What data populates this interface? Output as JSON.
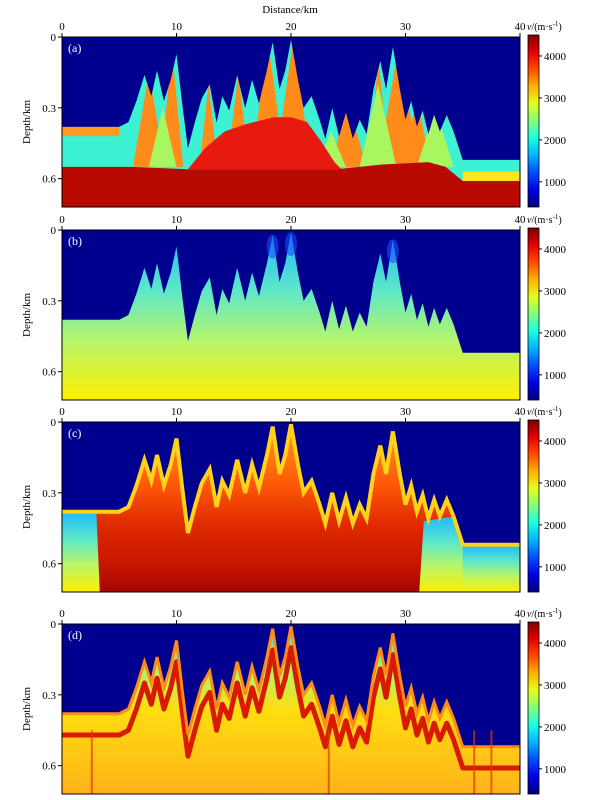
{
  "figure": {
    "top_axis_label": "Distance/km",
    "colorbar_label_prefix": "v/(m·s",
    "colorbar_label_exp": "-1",
    "colorbar_label_suffix": ")"
  },
  "chart_data": [
    {
      "type": "heatmap",
      "panel": "(a)",
      "xlabel": "Distance/km",
      "ylabel": "Depth/km",
      "xlim": [
        0,
        40
      ],
      "ylim": [
        0,
        0.72
      ],
      "y_inverted": true,
      "x_ticks": [
        0,
        10,
        20,
        30,
        40
      ],
      "y_ticks": [
        0,
        0.3,
        0.6
      ],
      "colorbar": {
        "ticks": [
          1000,
          2000,
          3000,
          4000
        ],
        "range": [
          400,
          4500
        ],
        "colormap": "jet"
      },
      "style": "layered"
    },
    {
      "type": "heatmap",
      "panel": "(b)",
      "xlabel": "",
      "ylabel": "Depth/km",
      "xlim": [
        0,
        40
      ],
      "ylim": [
        0,
        0.72
      ],
      "y_inverted": true,
      "x_ticks": [
        0,
        10,
        20,
        30,
        40
      ],
      "y_ticks": [
        0,
        0.3,
        0.6
      ],
      "colorbar": {
        "ticks": [
          1000,
          2000,
          3000,
          4000
        ],
        "range": [
          400,
          4500
        ],
        "colormap": "jet"
      },
      "style": "gradient"
    },
    {
      "type": "heatmap",
      "panel": "(c)",
      "xlabel": "",
      "ylabel": "Depth/km",
      "xlim": [
        0,
        40
      ],
      "ylim": [
        0,
        0.72
      ],
      "y_inverted": true,
      "x_ticks": [
        0,
        10,
        20,
        30,
        40
      ],
      "y_ticks": [
        0,
        0.3,
        0.6
      ],
      "colorbar": {
        "ticks": [
          1000,
          2000,
          3000,
          4000
        ],
        "range": [
          400,
          4500
        ],
        "colormap": "jet"
      },
      "style": "inverted-hot"
    },
    {
      "type": "heatmap",
      "panel": "(d)",
      "xlabel": "",
      "ylabel": "Depth/km",
      "xlim": [
        0,
        40
      ],
      "ylim": [
        0,
        0.72
      ],
      "y_inverted": true,
      "x_ticks": [
        0,
        10,
        20,
        30,
        40
      ],
      "y_ticks": [
        0,
        0.3,
        0.6
      ],
      "colorbar": {
        "ticks": [
          1000,
          2000,
          3000,
          4000
        ],
        "range": [
          400,
          4500
        ],
        "colormap": "jet"
      },
      "style": "inverted-banded"
    }
  ],
  "surface_profile": {
    "x_km": [
      0,
      5,
      5.8,
      6.5,
      7.2,
      7.8,
      8.3,
      8.9,
      9.5,
      10,
      10.5,
      11,
      11.6,
      12.2,
      12.9,
      13.5,
      14,
      14.6,
      15.3,
      16,
      16.6,
      17.2,
      17.9,
      18.4,
      19,
      19.5,
      20,
      20.6,
      21.1,
      21.8,
      22.5,
      23,
      23.6,
      24.2,
      24.8,
      25.4,
      26,
      26.6,
      27.2,
      27.8,
      28.3,
      28.9,
      29.5,
      30,
      30.5,
      31,
      31.5,
      32,
      32.5,
      33,
      33.6,
      34.2,
      35,
      40
    ],
    "depth_km": [
      0.38,
      0.38,
      0.36,
      0.27,
      0.16,
      0.25,
      0.14,
      0.27,
      0.18,
      0.07,
      0.28,
      0.47,
      0.36,
      0.26,
      0.2,
      0.36,
      0.25,
      0.31,
      0.16,
      0.3,
      0.18,
      0.28,
      0.14,
      0.02,
      0.22,
      0.14,
      0.01,
      0.18,
      0.3,
      0.25,
      0.35,
      0.43,
      0.3,
      0.42,
      0.32,
      0.43,
      0.35,
      0.41,
      0.22,
      0.1,
      0.22,
      0.04,
      0.22,
      0.35,
      0.27,
      0.38,
      0.31,
      0.41,
      0.33,
      0.4,
      0.33,
      0.4,
      0.52,
      0.52
    ]
  }
}
